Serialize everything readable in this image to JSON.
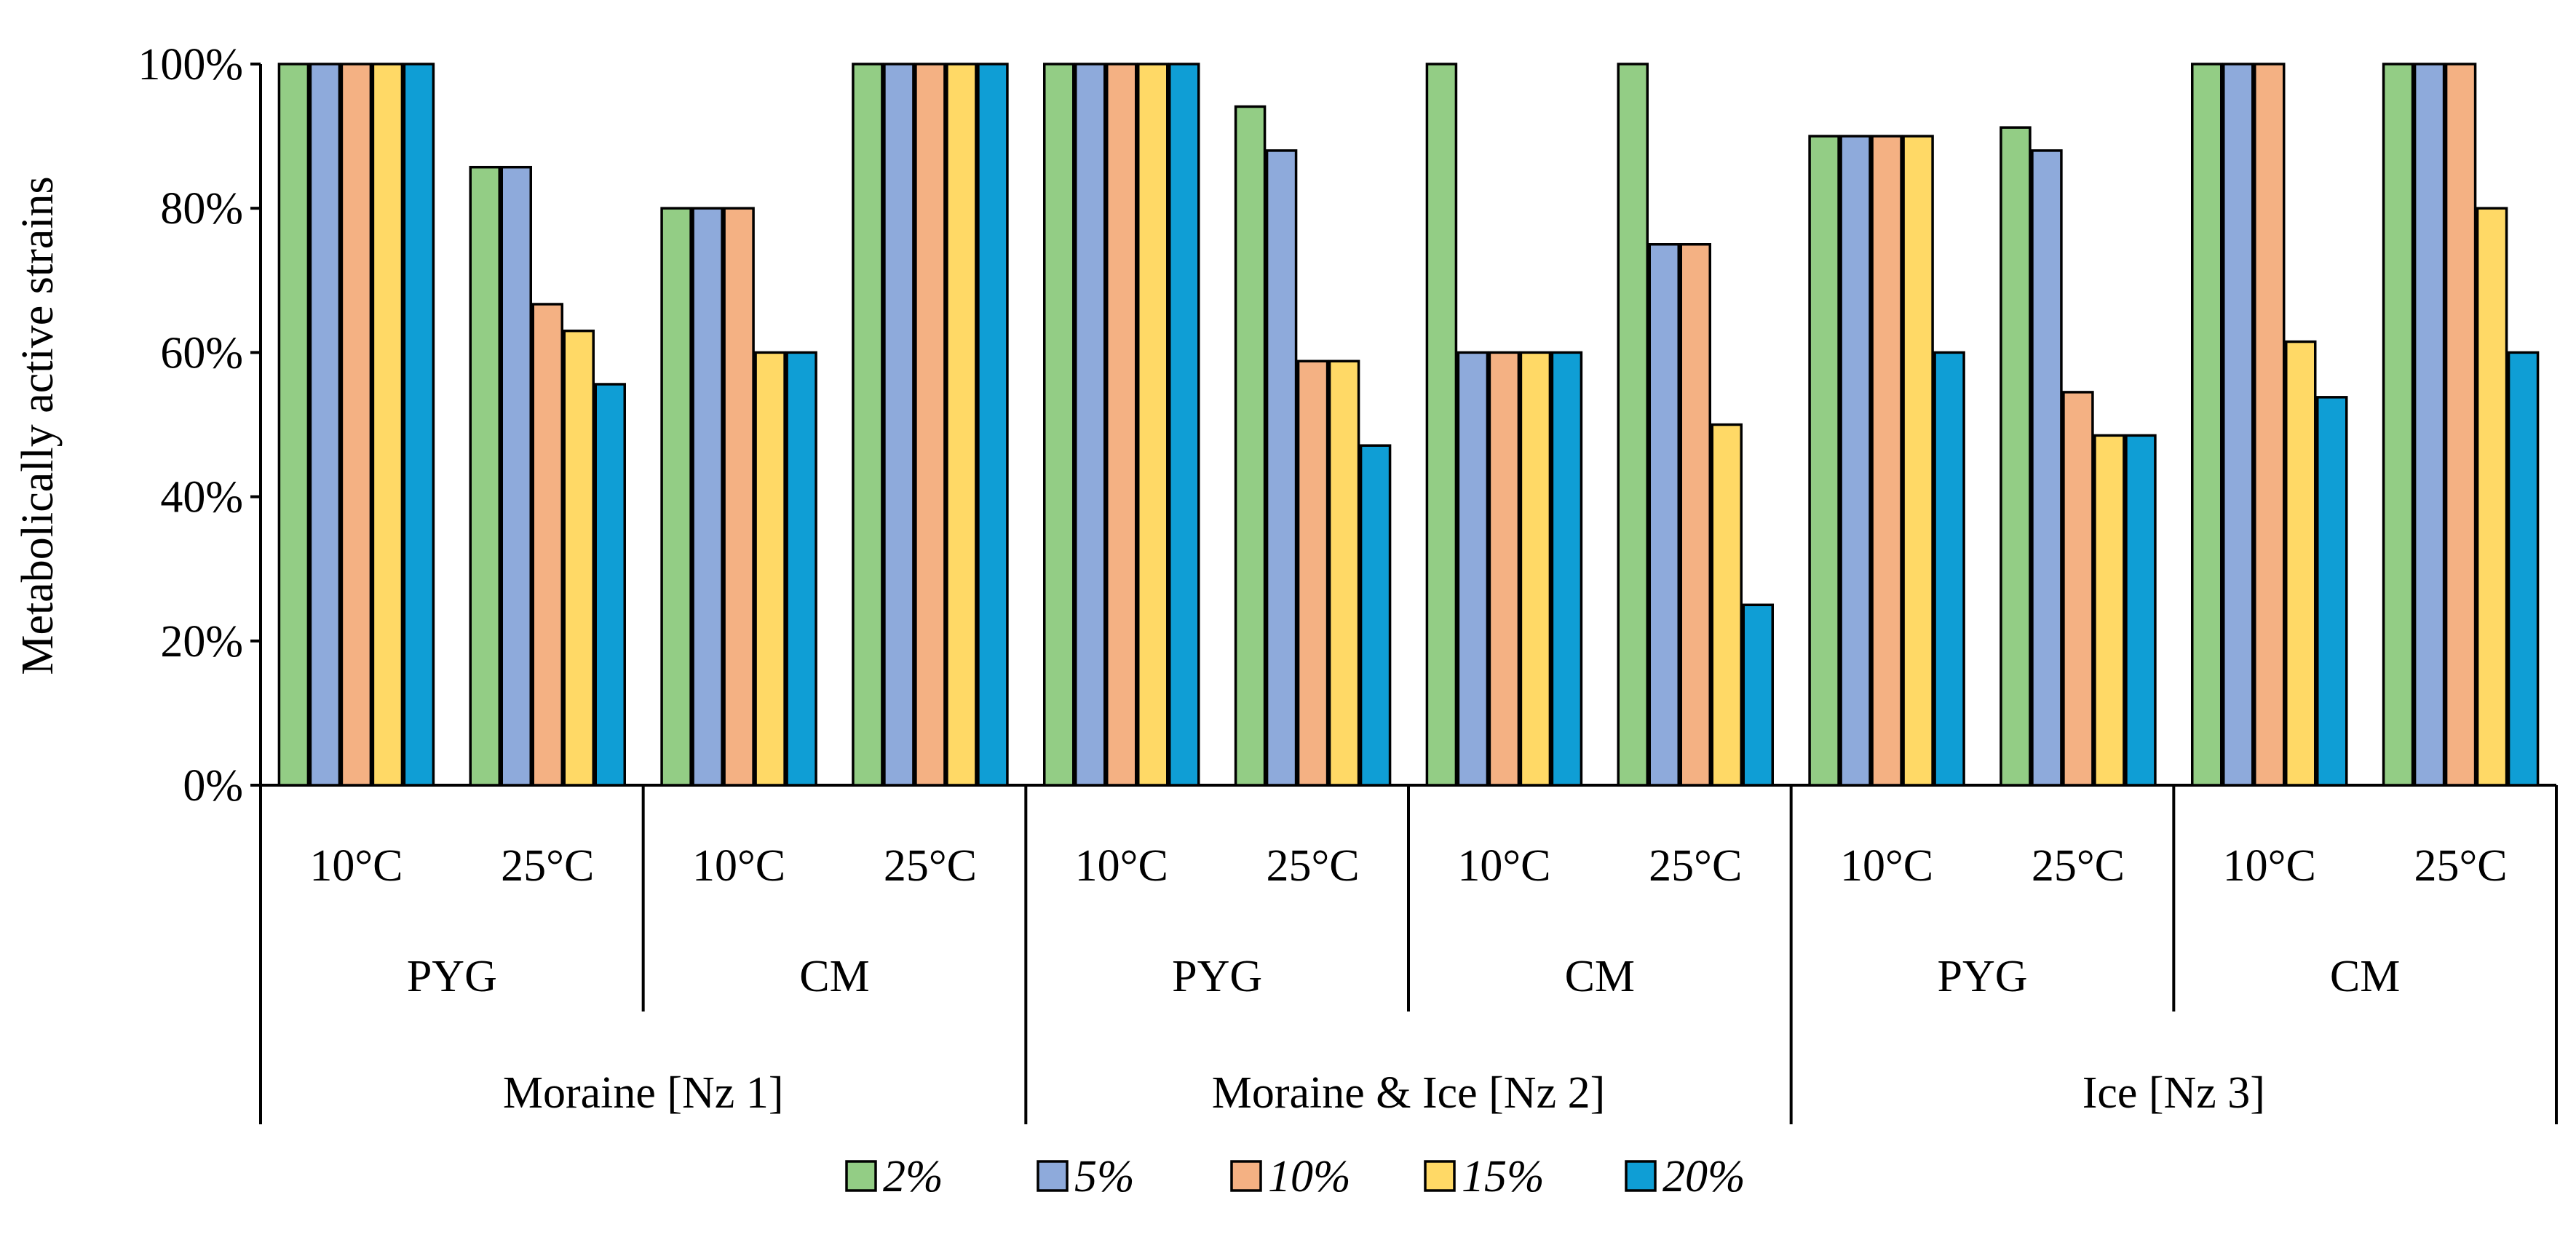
{
  "chart_data": {
    "type": "bar",
    "title": "",
    "xlabel": "",
    "ylabel": "Metabolically active strains",
    "ylim": [
      0,
      100
    ],
    "yticks": [
      "0%",
      "20%",
      "40%",
      "60%",
      "80%",
      "100%"
    ],
    "ytick_values": [
      0,
      20,
      40,
      60,
      80,
      100
    ],
    "grid": false,
    "legend_position": "bottom",
    "groups_level1": [
      "Moraine [Nz 1]",
      "Moraine & Ice [Nz 2]",
      "Ice [Nz 3]"
    ],
    "groups_level2": [
      "PYG",
      "CM",
      "PYG",
      "CM",
      "PYG",
      "CM"
    ],
    "categories": [
      "10°C",
      "25°C",
      "10°C",
      "25°C",
      "10°C",
      "25°C",
      "10°C",
      "25°C",
      "10°C",
      "25°C",
      "10°C",
      "25°C"
    ],
    "series": [
      {
        "name": "2%",
        "color": "#93cd85",
        "values": [
          100,
          85.7,
          80,
          100,
          100,
          94.1,
          100,
          100,
          90,
          91.2,
          100,
          100
        ]
      },
      {
        "name": "5%",
        "color": "#8eaadb",
        "values": [
          100,
          85.7,
          80,
          100,
          100,
          88,
          60,
          75,
          90,
          88,
          100,
          100
        ]
      },
      {
        "name": "10%",
        "color": "#f4b183",
        "values": [
          100,
          66.7,
          80,
          100,
          100,
          58.8,
          60,
          75,
          90,
          54.5,
          100,
          100
        ]
      },
      {
        "name": "15%",
        "color": "#ffd966",
        "values": [
          100,
          63,
          60,
          100,
          100,
          58.8,
          60,
          50,
          90,
          48.5,
          61.5,
          80
        ]
      },
      {
        "name": "20%",
        "color": "#0f9ed5",
        "values": [
          100,
          55.6,
          60,
          100,
          100,
          47.1,
          60,
          25,
          60,
          48.5,
          53.8,
          60
        ]
      }
    ]
  }
}
